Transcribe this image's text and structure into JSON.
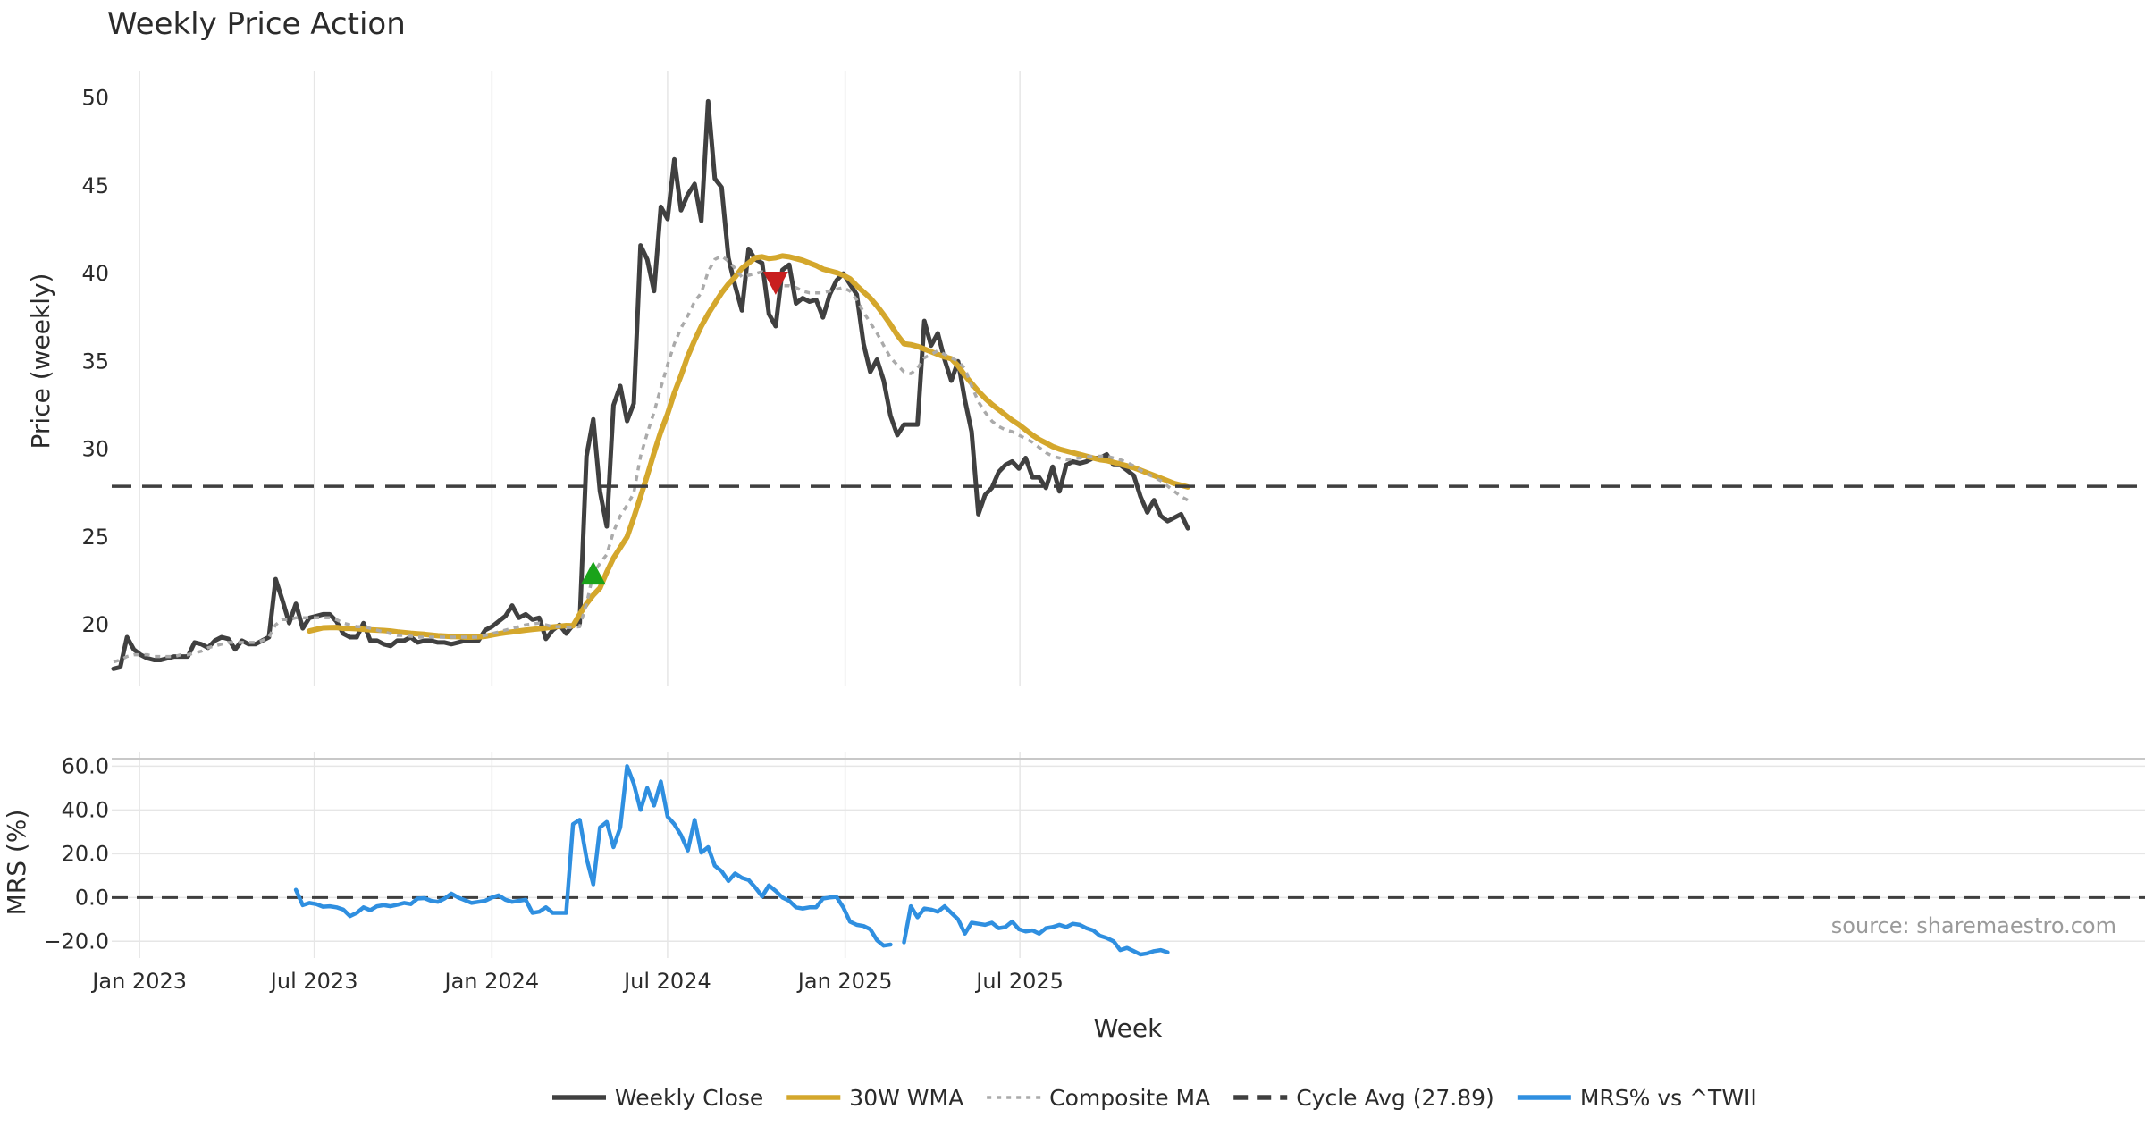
{
  "chart_data": [
    {
      "type": "line",
      "title": "Weekly Price Action",
      "xlabel": "",
      "ylabel": "Price (weekly)",
      "ylim": [
        16.5,
        51.5
      ],
      "yticks": [
        20,
        25,
        30,
        35,
        40,
        45,
        50
      ],
      "grid": true,
      "x_start": "2022-12-05",
      "x_step_weeks": 1,
      "series": [
        {
          "name": "Weekly Close",
          "color": "#404040",
          "style": "solid",
          "values": [
            17.5,
            17.6,
            19.3,
            18.6,
            18.3,
            18.1,
            18.0,
            18.0,
            18.1,
            18.2,
            18.2,
            18.2,
            19.0,
            18.9,
            18.7,
            19.1,
            19.3,
            19.2,
            18.6,
            19.1,
            18.9,
            18.9,
            19.1,
            19.3,
            22.6,
            21.4,
            20.1,
            21.2,
            19.8,
            20.4,
            20.5,
            20.6,
            20.6,
            20.2,
            19.5,
            19.3,
            19.3,
            20.1,
            19.1,
            19.1,
            18.9,
            18.8,
            19.1,
            19.1,
            19.3,
            19.0,
            19.1,
            19.1,
            19.0,
            19.0,
            18.9,
            19.0,
            19.1,
            19.1,
            19.1,
            19.7,
            19.9,
            20.2,
            20.5,
            21.1,
            20.4,
            20.6,
            20.3,
            20.4,
            19.2,
            19.7,
            20.0,
            19.5,
            20.0,
            20.1,
            29.6,
            31.7,
            27.6,
            25.6,
            32.5,
            33.6,
            31.6,
            32.6,
            41.6,
            40.8,
            39.0,
            43.8,
            43.1,
            46.5,
            43.6,
            44.5,
            45.1,
            43.0,
            49.8,
            45.4,
            44.9,
            40.9,
            39.3,
            37.9,
            41.4,
            40.8,
            40.6,
            37.7,
            37.0,
            40.2,
            40.5,
            38.3,
            38.6,
            38.4,
            38.5,
            37.5,
            38.8,
            39.6,
            40.0,
            39.4,
            38.8,
            36.0,
            34.4,
            35.1,
            33.9,
            31.9,
            30.8,
            31.4,
            31.4,
            31.4,
            37.3,
            35.9,
            36.6,
            35.1,
            33.9,
            35.0,
            32.8,
            31.0,
            26.3,
            27.4,
            27.8,
            28.7,
            29.1,
            29.3,
            28.9,
            29.5,
            28.4,
            28.4,
            27.8,
            29.0,
            27.6,
            29.1,
            29.3,
            29.2,
            29.3,
            29.5,
            29.5,
            29.7,
            29.1,
            29.1,
            28.8,
            28.5,
            27.3,
            26.4,
            27.1,
            26.2,
            25.9,
            26.1,
            26.3,
            25.5
          ]
        },
        {
          "name": "30W WMA",
          "color": "#d4a72c",
          "style": "solid",
          "start_index": 29,
          "values": [
            19.65,
            19.74,
            19.83,
            19.84,
            19.85,
            19.8,
            19.8,
            19.78,
            19.75,
            19.72,
            19.7,
            19.68,
            19.65,
            19.6,
            19.56,
            19.52,
            19.49,
            19.46,
            19.42,
            19.38,
            19.36,
            19.34,
            19.33,
            19.3,
            19.3,
            19.31,
            19.35,
            19.42,
            19.49,
            19.55,
            19.6,
            19.65,
            19.7,
            19.74,
            19.78,
            19.82,
            19.88,
            19.92,
            19.96,
            19.95,
            20.6,
            21.2,
            21.7,
            22.1,
            23.0,
            23.8,
            24.4,
            25.0,
            26.1,
            27.3,
            28.5,
            29.8,
            31.0,
            32.0,
            33.2,
            34.2,
            35.3,
            36.2,
            37.0,
            37.7,
            38.3,
            38.9,
            39.4,
            39.8,
            40.3,
            40.6,
            40.9,
            40.95,
            40.85,
            40.9,
            41.0,
            40.95,
            40.85,
            40.75,
            40.6,
            40.45,
            40.25,
            40.15,
            40.05,
            39.9,
            39.7,
            39.3,
            38.95,
            38.6,
            38.15,
            37.65,
            37.1,
            36.5,
            36.0,
            35.95,
            35.85,
            35.7,
            35.55,
            35.4,
            35.25,
            35.15,
            34.75,
            34.2,
            33.75,
            33.3,
            32.9,
            32.55,
            32.25,
            31.95,
            31.65,
            31.4,
            31.1,
            30.8,
            30.55,
            30.35,
            30.15,
            30.0,
            29.9,
            29.8,
            29.7,
            29.6,
            29.5,
            29.4,
            29.35,
            29.25,
            29.15,
            29.05,
            28.95,
            28.8,
            28.65,
            28.5,
            28.35,
            28.2,
            28.05,
            27.95,
            27.85
          ]
        },
        {
          "name": "Composite MA",
          "color": "#aaaaaa",
          "style": "dotted",
          "values": [
            17.9,
            18.0,
            18.2,
            18.3,
            18.3,
            18.3,
            18.2,
            18.2,
            18.2,
            18.2,
            18.3,
            18.3,
            18.4,
            18.5,
            18.7,
            18.8,
            18.9,
            19.0,
            19.0,
            19.0,
            19.0,
            19.0,
            19.1,
            19.3,
            20.0,
            20.3,
            20.3,
            20.4,
            20.4,
            20.4,
            20.4,
            20.4,
            20.4,
            20.3,
            20.1,
            20.0,
            19.9,
            19.9,
            19.8,
            19.7,
            19.6,
            19.5,
            19.4,
            19.4,
            19.35,
            19.3,
            19.3,
            19.3,
            19.3,
            19.3,
            19.3,
            19.3,
            19.3,
            19.3,
            19.3,
            19.4,
            19.5,
            19.6,
            19.7,
            19.8,
            19.9,
            20.0,
            20.05,
            20.1,
            20.0,
            19.9,
            19.9,
            19.85,
            19.85,
            19.9,
            21.2,
            22.9,
            23.5,
            24.0,
            25.3,
            26.2,
            26.8,
            27.5,
            29.6,
            30.9,
            32.1,
            33.5,
            34.8,
            36.0,
            36.9,
            37.6,
            38.4,
            38.9,
            40.1,
            40.8,
            41.0,
            40.7,
            40.3,
            39.8,
            39.9,
            40.0,
            40.1,
            39.8,
            39.4,
            39.3,
            39.3,
            39.2,
            39.0,
            38.9,
            38.9,
            38.9,
            39.0,
            39.1,
            39.2,
            39.0,
            38.5,
            37.8,
            37.2,
            36.6,
            35.9,
            35.2,
            34.8,
            34.4,
            34.3,
            34.6,
            35.2,
            35.4,
            35.6,
            35.4,
            35.2,
            35.0,
            34.6,
            33.6,
            32.7,
            32.1,
            31.6,
            31.3,
            31.1,
            31.0,
            30.8,
            30.6,
            30.4,
            30.1,
            29.8,
            29.6,
            29.5,
            29.4,
            29.45,
            29.5,
            29.55,
            29.6,
            29.6,
            29.6,
            29.5,
            29.4,
            29.25,
            29.05,
            28.8,
            28.6,
            28.4,
            28.2,
            27.9,
            27.6,
            27.3,
            27.1
          ]
        },
        {
          "name": "Cycle Avg (27.89)",
          "color": "#3f3f3f",
          "style": "dashed",
          "constant": 27.89
        }
      ],
      "markers": [
        {
          "name": "buy-signal",
          "shape": "triangle-up",
          "color": "#1aa31a",
          "x_index": 71,
          "y": 22.9
        },
        {
          "name": "sell-signal",
          "shape": "triangle-down",
          "color": "#c81e1e",
          "x_index": 98,
          "y": 39.5
        }
      ]
    },
    {
      "type": "line",
      "title": "",
      "xlabel": "Week",
      "ylabel": "MRS (%)",
      "ylim": [
        -26,
        63
      ],
      "yticks": [
        -20.0,
        0.0,
        20.0,
        40.0,
        60.0
      ],
      "ytick_labels": [
        "−20.0",
        "0.0",
        "20.0",
        "40.0",
        "60.0"
      ],
      "grid": true,
      "x_ticks": [
        {
          "label": "Jan 2023",
          "date": "2023-01-01"
        },
        {
          "label": "Jul 2023",
          "date": "2023-07-01"
        },
        {
          "label": "Jan 2024",
          "date": "2024-01-01"
        },
        {
          "label": "Jul 2024",
          "date": "2024-07-01"
        },
        {
          "label": "Jan 2025",
          "date": "2025-01-01"
        },
        {
          "label": "Jul 2025",
          "date": "2025-07-01"
        }
      ],
      "zero_line": 0,
      "series": [
        {
          "name": "MRS% vs ^TWII",
          "color": "#2f8fe0",
          "style": "solid",
          "start_index": 27,
          "values": [
            3.5,
            -3.5,
            -2.5,
            -3.0,
            -4.2,
            -4.0,
            -4.5,
            -5.5,
            -8.5,
            -7.0,
            -4.5,
            -5.8,
            -4.0,
            -3.5,
            -4.0,
            -3.3,
            -2.5,
            -3.0,
            -0.5,
            -0.3,
            -1.5,
            -2.0,
            -0.5,
            1.8,
            0.0,
            -1.2,
            -2.5,
            -2.0,
            -1.5,
            0.0,
            1.0,
            -1.0,
            -2.0,
            -1.5,
            -1.0,
            -7.0,
            -6.5,
            -4.5,
            -7.0,
            -7.0,
            -7.0,
            33.5,
            35.5,
            18.0,
            6.0,
            32.0,
            34.5,
            23.0,
            32.0,
            60.0,
            52.0,
            40.0,
            50.0,
            42.0,
            53.0,
            37.0,
            33.5,
            28.5,
            21.5,
            35.5,
            20.5,
            23.0,
            14.5,
            12.0,
            7.5,
            11.0,
            9.0,
            8.0,
            4.5,
            0.5,
            5.5,
            3.0,
            0.0,
            -1.5,
            -4.5,
            -5.0,
            -4.5,
            -4.5,
            -0.5,
            0.0,
            0.3,
            -4.5,
            -11.0,
            -12.5,
            -13.0,
            -14.5,
            -19.5,
            -22.0,
            -21.5,
            null,
            -20.5,
            -4.0,
            -9.0,
            -5.0,
            -5.5,
            -6.5,
            -4.0,
            -7.0,
            -10.0,
            -16.5,
            -11.5,
            -12.0,
            -12.5,
            -11.5,
            -14.0,
            -13.5,
            -11.0,
            -14.5,
            -15.5,
            -15.0,
            -16.5,
            -14.0,
            -13.5,
            -12.5,
            -13.5,
            -12.0,
            -12.5,
            -14.0,
            -15.0,
            -17.5,
            -18.5,
            -20.0,
            -24.0,
            -23.0,
            -24.5,
            -26.0,
            -25.5,
            -24.5,
            -24.0,
            -25.0
          ]
        }
      ]
    }
  ],
  "legend": {
    "position": "bottom-center",
    "items": [
      {
        "label": "Weekly Close",
        "color": "#404040",
        "style": "solid"
      },
      {
        "label": "30W WMA",
        "color": "#d4a72c",
        "style": "solid"
      },
      {
        "label": "Composite MA",
        "color": "#aaaaaa",
        "style": "dotted"
      },
      {
        "label": "Cycle Avg (27.89)",
        "color": "#3f3f3f",
        "style": "dashed"
      },
      {
        "label": "MRS% vs ^TWII",
        "color": "#2f8fe0",
        "style": "solid"
      }
    ]
  },
  "watermark": "source: sharemaestro.com"
}
